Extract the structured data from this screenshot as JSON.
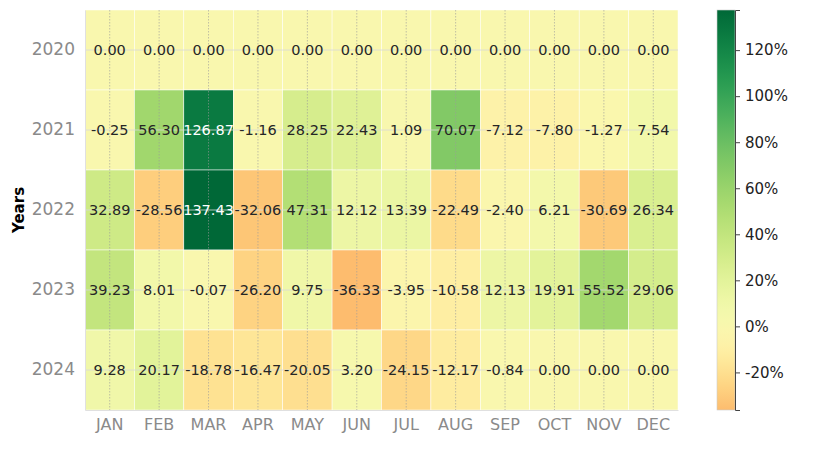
{
  "chart_data": {
    "type": "heatmap",
    "ylabel": "Years",
    "categories": [
      "JAN",
      "FEB",
      "MAR",
      "APR",
      "MAY",
      "JUN",
      "JUL",
      "AUG",
      "SEP",
      "OCT",
      "NOV",
      "DEC"
    ],
    "rows": [
      "2020",
      "2021",
      "2022",
      "2023",
      "2024"
    ],
    "values": [
      [
        0,
        0,
        0,
        0,
        0,
        0,
        0,
        0,
        0,
        0,
        0,
        0
      ],
      [
        -0.25,
        56.3,
        126.87,
        -1.16,
        28.25,
        22.43,
        1.09,
        70.07,
        -7.12,
        -7.8,
        -1.27,
        7.54
      ],
      [
        32.89,
        -28.56,
        137.43,
        -32.06,
        47.31,
        12.12,
        13.39,
        -22.49,
        -2.4,
        6.21,
        -30.69,
        26.34
      ],
      [
        39.23,
        8.01,
        -0.07,
        -26.2,
        9.75,
        -36.33,
        -3.95,
        -10.58,
        12.13,
        19.91,
        55.52,
        29.06
      ],
      [
        9.28,
        20.17,
        -18.78,
        -16.47,
        -20.05,
        3.2,
        -24.15,
        -12.17,
        -0.84,
        0,
        0,
        0
      ]
    ],
    "value_labels": [
      [
        "0.00",
        "0.00",
        "0.00",
        "0.00",
        "0.00",
        "0.00",
        "0.00",
        "0.00",
        "0.00",
        "0.00",
        "0.00",
        "0.00"
      ],
      [
        "-0.25",
        "56.30",
        "126.87",
        "-1.16",
        "28.25",
        "22.43",
        "1.09",
        "70.07",
        "-7.12",
        "-7.80",
        "-1.27",
        "7.54"
      ],
      [
        "32.89",
        "-28.56",
        "137.43",
        "-32.06",
        "47.31",
        "12.12",
        "13.39",
        "-22.49",
        "-2.40",
        "6.21",
        "-30.69",
        "26.34"
      ],
      [
        "39.23",
        "8.01",
        "-0.07",
        "-26.20",
        "9.75",
        "-36.33",
        "-3.95",
        "-10.58",
        "12.13",
        "19.91",
        "55.52",
        "29.06"
      ],
      [
        "9.28",
        "20.17",
        "-18.78",
        "-16.47",
        "-20.05",
        "3.20",
        "-24.15",
        "-12.17",
        "-0.84",
        "0.00",
        "0.00",
        "0.00"
      ]
    ],
    "data_labels": true,
    "grid": true,
    "colorbar": {
      "range": [
        -36.33,
        137.43
      ],
      "ticks": [
        {
          "value": -20,
          "label": "-20%"
        },
        {
          "value": 0,
          "label": "0%"
        },
        {
          "value": 20,
          "label": "20%"
        },
        {
          "value": 40,
          "label": "40%"
        },
        {
          "value": 60,
          "label": "60%"
        },
        {
          "value": 80,
          "label": "80%"
        },
        {
          "value": 100,
          "label": "100%"
        },
        {
          "value": 120,
          "label": "120%"
        }
      ]
    }
  }
}
